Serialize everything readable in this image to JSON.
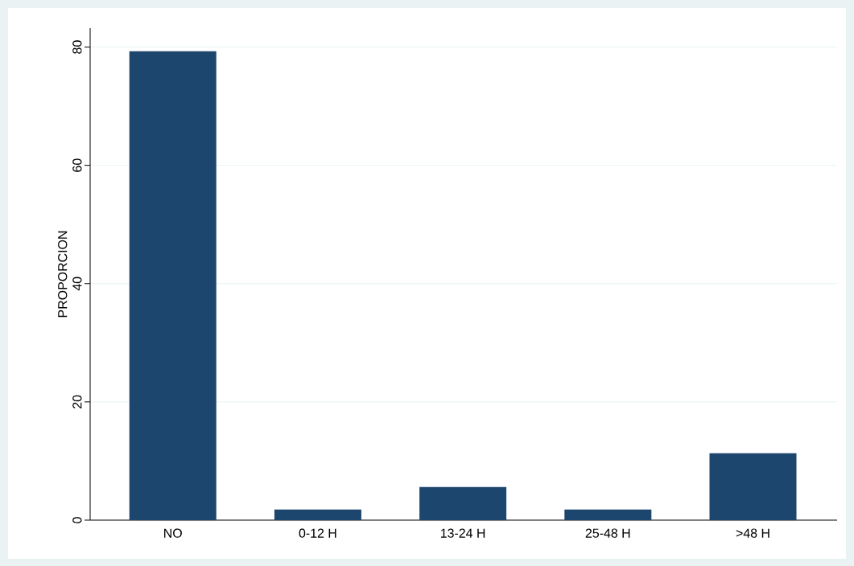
{
  "chart_data": {
    "type": "bar",
    "ylabel": "PROPORCION",
    "categories": [
      "NO",
      "0-12 H",
      "13-24 H",
      "25-48 H",
      ">48 H"
    ],
    "values": [
      79.3,
      1.8,
      5.6,
      1.8,
      11.3
    ],
    "color": "#1c466d",
    "ylim": [
      0,
      83.2
    ],
    "yticks": [
      0,
      20,
      40,
      60,
      80
    ],
    "grid": "y"
  }
}
